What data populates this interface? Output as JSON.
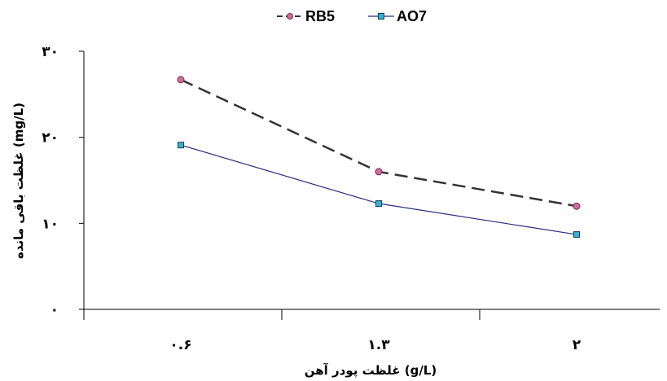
{
  "chart_data": {
    "type": "line",
    "categories": [
      "۰.۶",
      "۱.۳",
      "۲"
    ],
    "series": [
      {
        "name": "RB5",
        "values": [
          26.7,
          16.0,
          12.0
        ],
        "color": "#333333",
        "marker_fill": "#cc6e9c",
        "dash": true
      },
      {
        "name": "AO7",
        "values": [
          19.1,
          12.3,
          8.7
        ],
        "color": "#2a2a7a",
        "marker_fill": "#33b3cc",
        "dash": false
      }
    ],
    "y_ticks": [
      {
        "value": 0,
        "label": "۰"
      },
      {
        "value": 10,
        "label": "۱۰"
      },
      {
        "value": 20,
        "label": "۲۰"
      },
      {
        "value": 30,
        "label": "۳۰"
      }
    ],
    "ylim": [
      0,
      30
    ],
    "xlabel": "غلظت پودر آهن (g/L)",
    "ylabel": "غلظت باقی مانده (mg/L)",
    "legend_position": "top-center",
    "grid": false
  }
}
